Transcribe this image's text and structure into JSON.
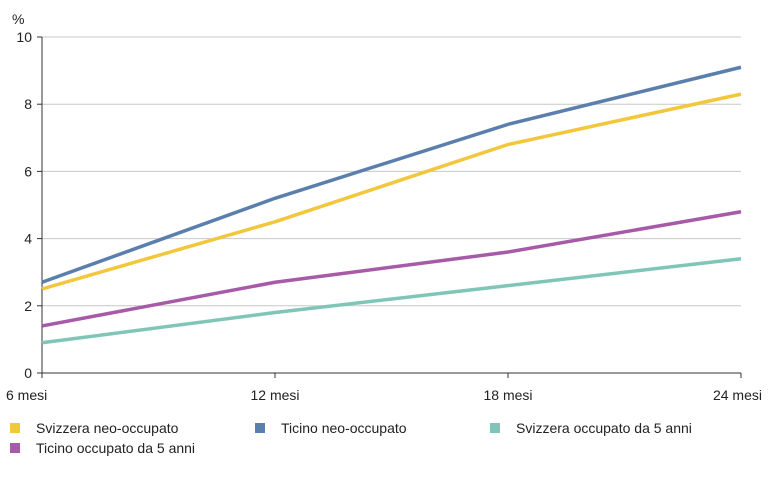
{
  "chart_data": {
    "type": "line",
    "ylabel": "%",
    "x": [
      "6 mesi",
      "12 mesi",
      "18 mesi",
      "24 mesi"
    ],
    "ylim": [
      0,
      10
    ],
    "yticks": [
      0,
      2,
      4,
      6,
      8,
      10
    ],
    "grid": true,
    "legend": "bottom",
    "series": [
      {
        "name": "Svizzera neo-occupato",
        "color": "#f2c73c",
        "values": [
          2.5,
          4.5,
          6.8,
          8.3
        ]
      },
      {
        "name": "Ticino neo-occupato",
        "color": "#5b7fad",
        "values": [
          2.7,
          5.2,
          7.4,
          9.1
        ]
      },
      {
        "name": "Svizzera occupato da 5 anni",
        "color": "#7fc6b8",
        "values": [
          0.9,
          1.8,
          2.6,
          3.4
        ]
      },
      {
        "name": "Ticino occupato da 5 anni",
        "color": "#a65aa8",
        "values": [
          1.4,
          2.7,
          3.6,
          4.8
        ]
      }
    ]
  }
}
